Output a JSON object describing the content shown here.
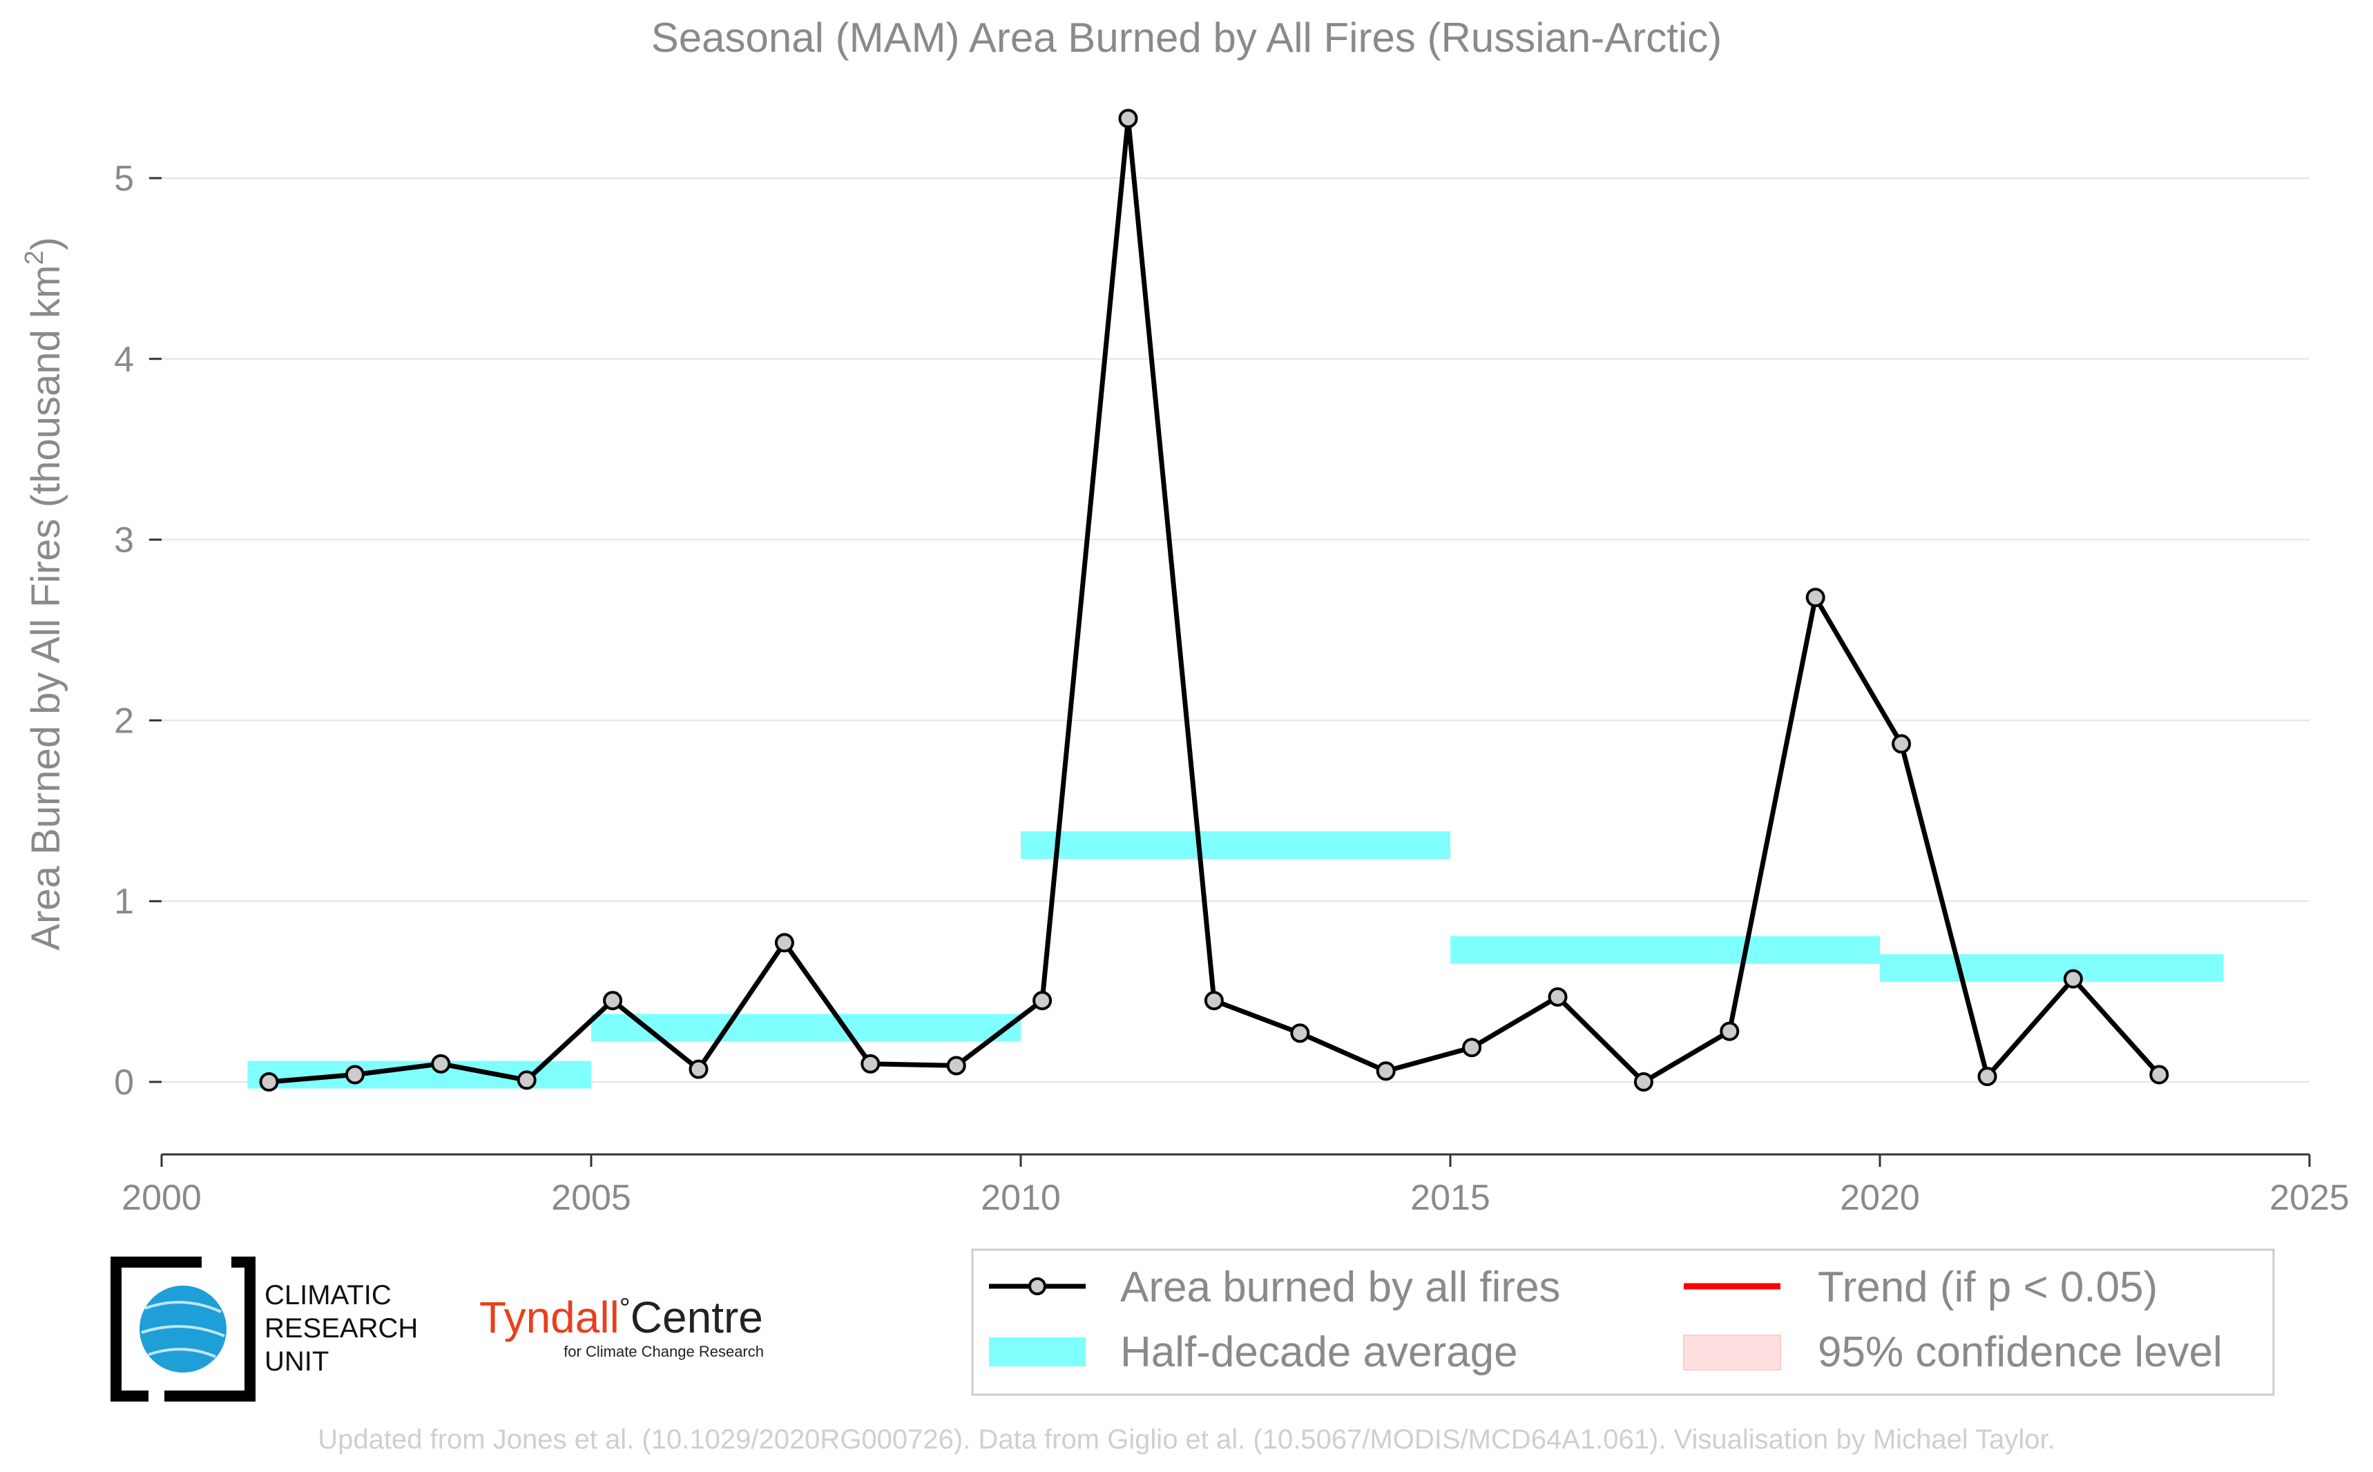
{
  "chart_data": {
    "type": "line",
    "title": "Seasonal (MAM) Area Burned by All Fires (Russian-Arctic)",
    "xlabel": "",
    "ylabel": "Area Burned by All Fires (thousand km",
    "ylabel_sup": "2",
    "ylabel_close": ")",
    "xlim": [
      2000,
      2025
    ],
    "ylim": [
      -0.4,
      5.4
    ],
    "x_ticks": [
      "2000",
      "2005",
      "2010",
      "2015",
      "2020",
      "2025"
    ],
    "y_ticks": [
      "0",
      "1",
      "2",
      "3",
      "4",
      "5"
    ],
    "grid": "horizontal",
    "legend_position": "bottom-right",
    "series": [
      {
        "name": "Area burned by all fires",
        "color": "#000000",
        "marker_fill": "#cccccc",
        "x": [
          2001.25,
          2002.25,
          2003.25,
          2004.25,
          2005.25,
          2006.25,
          2007.25,
          2008.25,
          2009.25,
          2010.25,
          2011.25,
          2012.25,
          2013.25,
          2014.25,
          2015.25,
          2016.25,
          2017.25,
          2018.25,
          2019.25,
          2020.25,
          2021.25,
          2022.25,
          2023.25
        ],
        "y": [
          0.0,
          0.04,
          0.1,
          0.01,
          0.45,
          0.07,
          0.77,
          0.1,
          0.09,
          0.45,
          5.33,
          0.45,
          0.27,
          0.06,
          0.19,
          0.47,
          0.0,
          0.28,
          2.68,
          1.87,
          0.03,
          0.57,
          0.04
        ]
      }
    ],
    "half_decade_average": {
      "name": "Half-decade average",
      "color": "#80ffff",
      "segments": [
        {
          "x0": 2001,
          "x1": 2005,
          "y": 0.04
        },
        {
          "x0": 2005,
          "x1": 2010,
          "y": 0.3
        },
        {
          "x0": 2010,
          "x1": 2015,
          "y": 1.31
        },
        {
          "x0": 2015,
          "x1": 2020,
          "y": 0.73
        },
        {
          "x0": 2020,
          "x1": 2024,
          "y": 0.63
        }
      ]
    },
    "trend": {
      "name": "Trend (if p < 0.05)",
      "color": "#ff0000"
    },
    "confidence": {
      "name": "95% confidence level",
      "color": "#ffe0e0"
    }
  },
  "logos": {
    "cru": [
      "CLIMATIC",
      "RESEARCH",
      "UNIT"
    ],
    "tyndall_main": "Tyndall",
    "tyndall_deg": "°",
    "tyndall_centre": "Centre",
    "tyndall_sub": "for Climate Change Research",
    "tyndall_color": "#e8401c"
  },
  "credit": "Updated from Jones et al. (10.1029/2020RG000726). Data from Giglio et al. (10.5067/MODIS/MCD64A1.061). Visualisation by Michael Taylor."
}
